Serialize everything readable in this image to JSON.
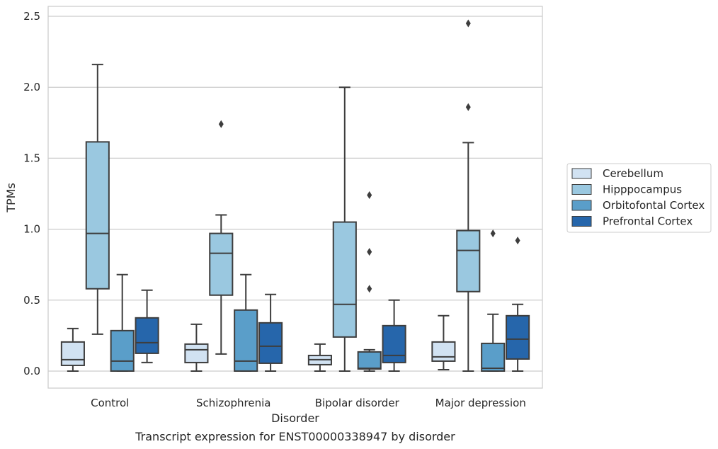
{
  "chart_data": {
    "type": "box",
    "xlabel": "Disorder",
    "ylabel": "TPMs",
    "caption": "Transcript expression for ENST00000338947 by disorder",
    "ylim": [
      -0.12,
      2.57
    ],
    "yticks": [
      "0.0",
      "0.5",
      "1.0",
      "1.5",
      "2.0",
      "2.5"
    ],
    "ytick_values": [
      0.0,
      0.5,
      1.0,
      1.5,
      2.0,
      2.5
    ],
    "grid": true,
    "legend_position": "right",
    "categories": [
      "Control",
      "Schizophrenia",
      "Bipolar disorder",
      "Major depression"
    ],
    "series": [
      {
        "name": "Cerebellum",
        "color": "#d1e2f2",
        "boxes": [
          {
            "whisker_low": 0.0,
            "q1": 0.04,
            "median": 0.08,
            "q3": 0.205,
            "whisker_high": 0.3,
            "outliers": []
          },
          {
            "whisker_low": 0.0,
            "q1": 0.06,
            "median": 0.15,
            "q3": 0.19,
            "whisker_high": 0.33,
            "outliers": []
          },
          {
            "whisker_low": 0.0,
            "q1": 0.045,
            "median": 0.08,
            "q3": 0.11,
            "whisker_high": 0.19,
            "outliers": []
          },
          {
            "whisker_low": 0.01,
            "q1": 0.07,
            "median": 0.1,
            "q3": 0.205,
            "whisker_high": 0.39,
            "outliers": []
          }
        ]
      },
      {
        "name": "Hipppocampus",
        "color": "#9ac8e0",
        "boxes": [
          {
            "whisker_low": 0.26,
            "q1": 0.58,
            "median": 0.97,
            "q3": 1.615,
            "whisker_high": 2.16,
            "outliers": []
          },
          {
            "whisker_low": 0.12,
            "q1": 0.535,
            "median": 0.83,
            "q3": 0.97,
            "whisker_high": 1.1,
            "outliers": [
              1.74
            ]
          },
          {
            "whisker_low": 0.0,
            "q1": 0.24,
            "median": 0.47,
            "q3": 1.05,
            "whisker_high": 2.0,
            "outliers": []
          },
          {
            "whisker_low": 0.0,
            "q1": 0.56,
            "median": 0.85,
            "q3": 0.99,
            "whisker_high": 1.61,
            "outliers": [
              1.86,
              2.45
            ]
          }
        ]
      },
      {
        "name": "Orbitofontal Cortex",
        "color": "#5a9ec9",
        "boxes": [
          {
            "whisker_low": 0.0,
            "q1": 0.0,
            "median": 0.07,
            "q3": 0.285,
            "whisker_high": 0.68,
            "outliers": []
          },
          {
            "whisker_low": 0.0,
            "q1": 0.0,
            "median": 0.07,
            "q3": 0.43,
            "whisker_high": 0.68,
            "outliers": []
          },
          {
            "whisker_low": 0.0,
            "q1": 0.015,
            "median": 0.02,
            "q3": 0.135,
            "whisker_high": 0.15,
            "outliers": [
              0.58,
              0.84,
              1.24
            ]
          },
          {
            "whisker_low": 0.0,
            "q1": 0.0,
            "median": 0.02,
            "q3": 0.195,
            "whisker_high": 0.4,
            "outliers": [
              0.97
            ]
          }
        ]
      },
      {
        "name": "Prefrontal Cortex",
        "color": "#2666ab",
        "boxes": [
          {
            "whisker_low": 0.06,
            "q1": 0.125,
            "median": 0.2,
            "q3": 0.375,
            "whisker_high": 0.57,
            "outliers": []
          },
          {
            "whisker_low": 0.0,
            "q1": 0.055,
            "median": 0.175,
            "q3": 0.34,
            "whisker_high": 0.54,
            "outliers": []
          },
          {
            "whisker_low": 0.0,
            "q1": 0.06,
            "median": 0.11,
            "q3": 0.32,
            "whisker_high": 0.5,
            "outliers": []
          },
          {
            "whisker_low": 0.0,
            "q1": 0.085,
            "median": 0.225,
            "q3": 0.39,
            "whisker_high": 0.47,
            "outliers": [
              0.92
            ]
          }
        ]
      }
    ]
  }
}
